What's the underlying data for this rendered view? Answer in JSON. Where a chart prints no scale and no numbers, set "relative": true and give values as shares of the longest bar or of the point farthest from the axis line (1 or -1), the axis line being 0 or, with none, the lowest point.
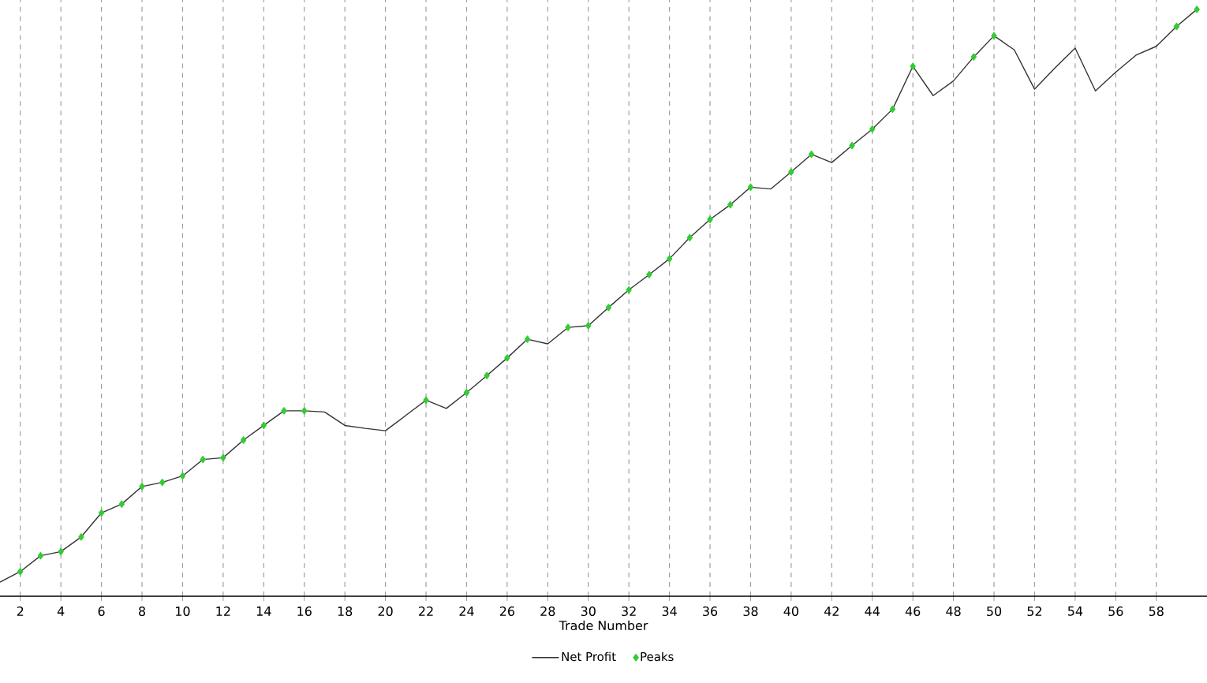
{
  "chart_data": {
    "type": "line",
    "xlabel": "Trade Number",
    "relative": true,
    "grid": true,
    "legend": "bottom",
    "xlim": [
      1,
      60.5
    ],
    "xticks": [
      2,
      4,
      6,
      8,
      10,
      12,
      14,
      16,
      18,
      20,
      22,
      24,
      26,
      28,
      30,
      32,
      34,
      36,
      38,
      40,
      42,
      44,
      46,
      48,
      50,
      52,
      54,
      56,
      58
    ],
    "x": [
      1,
      2,
      3,
      4,
      5,
      6,
      7,
      8,
      9,
      10,
      11,
      12,
      13,
      14,
      15,
      16,
      17,
      18,
      19,
      20,
      21,
      22,
      23,
      24,
      25,
      26,
      27,
      28,
      29,
      30,
      31,
      32,
      33,
      34,
      35,
      36,
      37,
      38,
      39,
      40,
      41,
      42,
      43,
      44,
      45,
      46,
      47,
      48,
      49,
      50,
      51,
      52,
      53,
      54,
      55,
      56,
      57,
      58,
      59,
      60
    ],
    "series": [
      {
        "name": "Net Profit",
        "color": "#333333",
        "marker": "none",
        "values": [
          0.024,
          0.042,
          0.069,
          0.076,
          0.101,
          0.142,
          0.157,
          0.187,
          0.194,
          0.205,
          0.233,
          0.236,
          0.266,
          0.291,
          0.316,
          0.316,
          0.314,
          0.291,
          0.286,
          0.282,
          0.308,
          0.334,
          0.32,
          0.347,
          0.376,
          0.406,
          0.438,
          0.43,
          0.458,
          0.461,
          0.492,
          0.522,
          0.548,
          0.575,
          0.611,
          0.642,
          0.667,
          0.697,
          0.694,
          0.723,
          0.753,
          0.739,
          0.768,
          0.796,
          0.83,
          0.903,
          0.853,
          0.878,
          0.919,
          0.955,
          0.931,
          0.864,
          0.9,
          0.934,
          0.861,
          0.893,
          0.922,
          0.937,
          0.971,
          1
        ]
      },
      {
        "name": "Peaks",
        "type": "scatter",
        "color": "#33cc33",
        "marker": "diamond",
        "x": [
          2,
          3,
          4,
          5,
          6,
          7,
          8,
          9,
          10,
          11,
          12,
          13,
          14,
          15,
          16,
          22,
          24,
          25,
          26,
          27,
          29,
          30,
          31,
          32,
          33,
          34,
          35,
          36,
          37,
          38,
          40,
          41,
          43,
          44,
          45,
          46,
          49,
          50,
          59,
          60
        ],
        "values": [
          0.042,
          0.069,
          0.076,
          0.101,
          0.142,
          0.157,
          0.187,
          0.194,
          0.205,
          0.233,
          0.236,
          0.266,
          0.291,
          0.316,
          0.316,
          0.334,
          0.347,
          0.376,
          0.406,
          0.438,
          0.458,
          0.461,
          0.492,
          0.522,
          0.548,
          0.575,
          0.611,
          0.642,
          0.667,
          0.697,
          0.723,
          0.753,
          0.768,
          0.796,
          0.83,
          0.903,
          0.919,
          0.955,
          0.971,
          1
        ]
      }
    ]
  }
}
